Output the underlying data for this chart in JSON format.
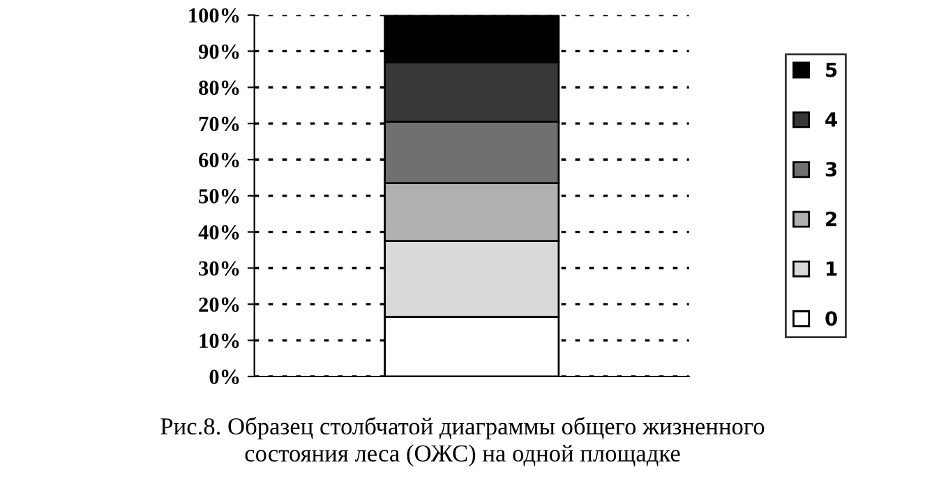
{
  "chart_data": {
    "type": "bar",
    "stacked": true,
    "categories": [
      null
    ],
    "series": [
      {
        "name": "0",
        "color": "#ffffff",
        "values": [
          16.5
        ]
      },
      {
        "name": "1",
        "color": "#d9d9d9",
        "values": [
          21
        ]
      },
      {
        "name": "2",
        "color": "#b0b0b0",
        "values": [
          16
        ]
      },
      {
        "name": "3",
        "color": "#707070",
        "values": [
          17
        ]
      },
      {
        "name": "4",
        "color": "#383838",
        "values": [
          16.5
        ]
      },
      {
        "name": "5",
        "color": "#000000",
        "values": [
          13
        ]
      }
    ],
    "ylim": [
      0,
      100
    ],
    "yticks": [
      {
        "value": 0,
        "label": "0%"
      },
      {
        "value": 10,
        "label": "10%"
      },
      {
        "value": 20,
        "label": "20%"
      },
      {
        "value": 30,
        "label": "30%"
      },
      {
        "value": 40,
        "label": "40%"
      },
      {
        "value": 50,
        "label": "50%"
      },
      {
        "value": 60,
        "label": "60%"
      },
      {
        "value": 70,
        "label": "70%"
      },
      {
        "value": 80,
        "label": "80%"
      },
      {
        "value": 90,
        "label": "90%"
      },
      {
        "value": 100,
        "label": "100%"
      }
    ],
    "grid": "y",
    "legend": "right",
    "annotations": [
      "Рис.8. Образец столбчатой диаграммы общего жизненного\nсостояния леса (ОЖС) на одной площадке"
    ]
  }
}
